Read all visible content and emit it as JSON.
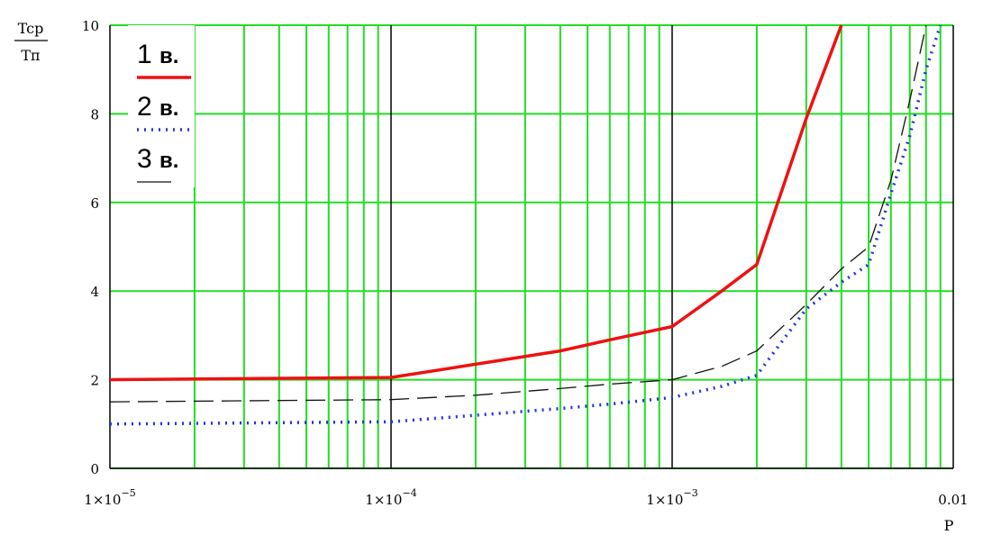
{
  "chart_data": {
    "type": "line",
    "x_scale": "log",
    "xlim": [
      1e-05,
      0.01
    ],
    "ylim": [
      0,
      10
    ],
    "grid": true,
    "legend_position": "top-left",
    "ylabel_numerator": "Tcp",
    "ylabel_denominator": "Tп",
    "xlabel": "P",
    "x_ticks": [
      {
        "value": 1e-05,
        "mant": "1×10",
        "exp": "−5"
      },
      {
        "value": 0.0001,
        "mant": "1×10",
        "exp": "−4"
      },
      {
        "value": 0.001,
        "mant": "1×10",
        "exp": "−3"
      },
      {
        "value": 0.01,
        "mant": "0.01",
        "exp": ""
      }
    ],
    "y_ticks": [
      "0",
      "2",
      "4",
      "6",
      "8",
      "10"
    ],
    "colors": {
      "grid_minor": "#22dd22",
      "grid_major": "#000000",
      "series_1": "#ee1111",
      "series_2": "#2233dd",
      "series_3": "#111111"
    },
    "series": [
      {
        "name": "1 в.",
        "style": "solid",
        "x": [
          1e-05,
          0.0001,
          0.0002,
          0.0004,
          0.0006,
          0.001,
          0.0015,
          0.002,
          0.003,
          0.004
        ],
        "y": [
          2.0,
          2.05,
          2.35,
          2.65,
          2.9,
          3.2,
          4.0,
          4.6,
          7.9,
          10.0
        ]
      },
      {
        "name": "2 в.",
        "style": "dotted",
        "x": [
          1e-05,
          0.0001,
          0.0002,
          0.0004,
          0.0006,
          0.001,
          0.0015,
          0.002,
          0.003,
          0.004,
          0.005,
          0.006,
          0.007,
          0.008,
          0.009
        ],
        "y": [
          1.0,
          1.05,
          1.2,
          1.35,
          1.45,
          1.6,
          1.85,
          2.1,
          3.6,
          4.2,
          4.6,
          6.2,
          7.5,
          9.0,
          10.0
        ]
      },
      {
        "name": "3 в.",
        "style": "dashed",
        "x": [
          1e-05,
          0.0001,
          0.0002,
          0.0004,
          0.0006,
          0.001,
          0.0015,
          0.002,
          0.003,
          0.004,
          0.005,
          0.006,
          0.007,
          0.008
        ],
        "y": [
          1.5,
          1.55,
          1.65,
          1.8,
          1.9,
          2.0,
          2.3,
          2.65,
          3.7,
          4.5,
          5.0,
          6.5,
          8.3,
          10.0
        ]
      }
    ]
  }
}
